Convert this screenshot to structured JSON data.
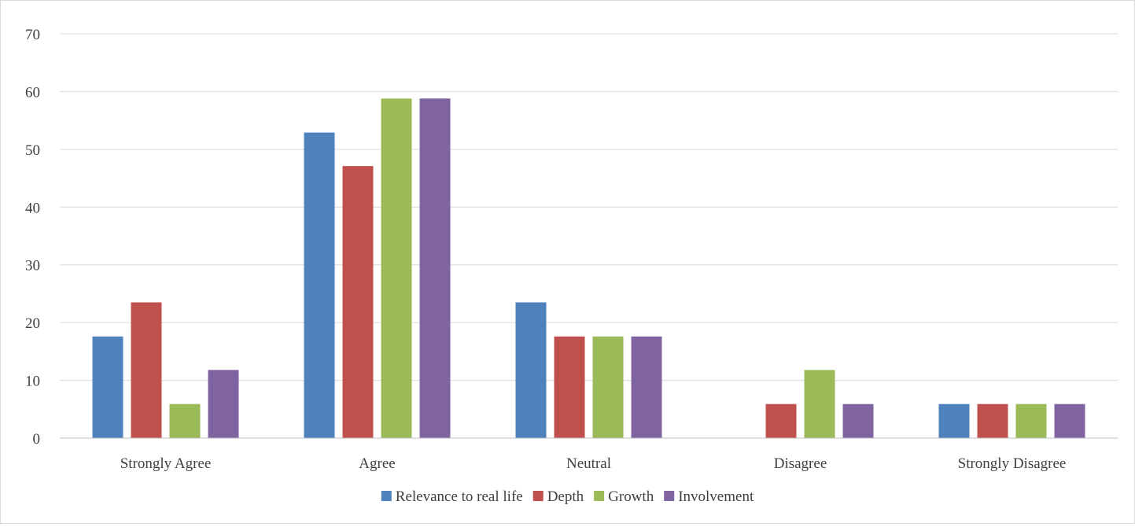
{
  "chart_data": {
    "type": "bar",
    "categories": [
      "Strongly Agree",
      "Agree",
      "Neutral",
      "Disagree",
      "Strongly Disagree"
    ],
    "series": [
      {
        "name": "Relevance to real life",
        "color": "#4f81bd",
        "values": [
          17.6,
          52.9,
          23.5,
          0,
          5.9
        ]
      },
      {
        "name": "Depth",
        "color": "#c0504d",
        "values": [
          23.5,
          47.1,
          17.6,
          5.9,
          5.9
        ]
      },
      {
        "name": "Growth",
        "color": "#9bbb59",
        "values": [
          5.9,
          58.8,
          17.6,
          11.8,
          5.9
        ]
      },
      {
        "name": "Involvement",
        "color": "#8064a2",
        "values": [
          11.8,
          58.8,
          17.6,
          5.9,
          5.9
        ]
      }
    ],
    "yticks": [
      "0",
      "10",
      "20",
      "30",
      "40",
      "50",
      "60",
      "70"
    ],
    "ylim": [
      0,
      70
    ],
    "title": "",
    "xlabel": "",
    "ylabel": "",
    "grid": true,
    "legend_position": "bottom"
  }
}
